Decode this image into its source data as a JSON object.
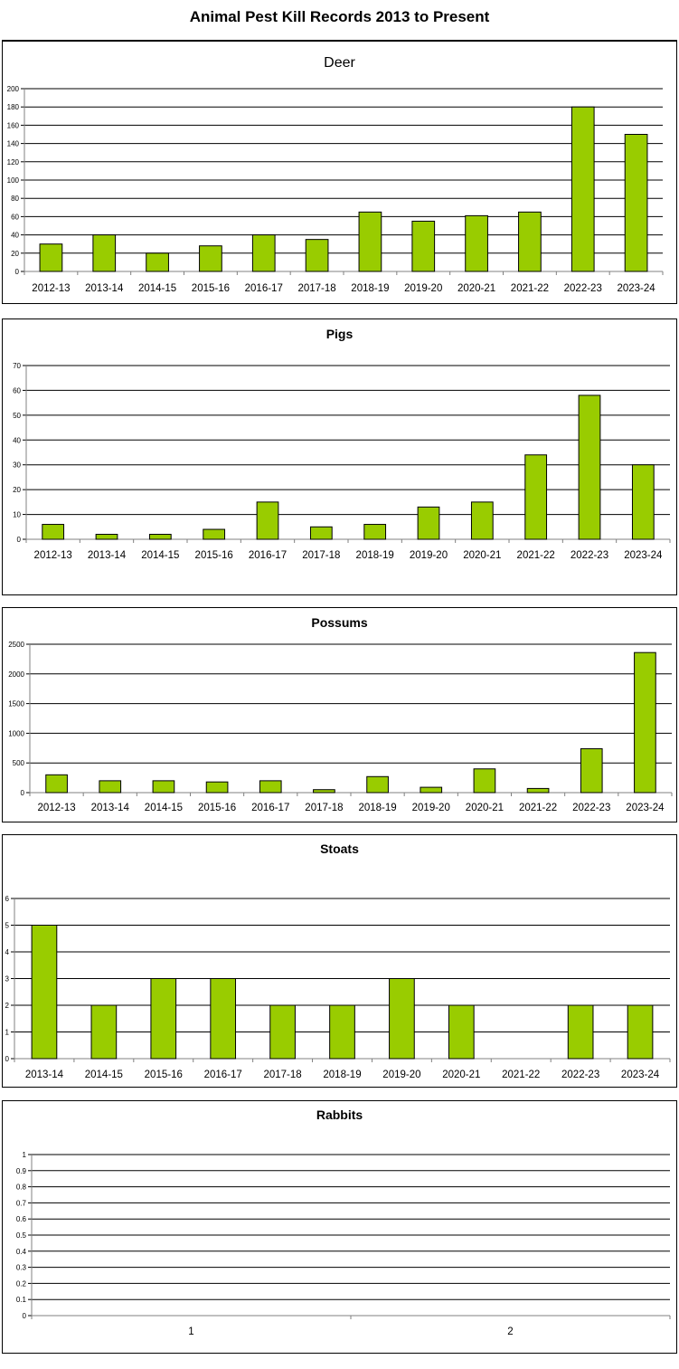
{
  "page": {
    "title": "Animal Pest Kill Records 2013 to Present"
  },
  "colors": {
    "bar_fill": "#99cc00",
    "bar_stroke": "#000000",
    "grid": "#000000"
  },
  "chart_data": [
    {
      "type": "bar",
      "title": "Deer",
      "categories": [
        "2012-13",
        "2013-14",
        "2014-15",
        "2015-16",
        "2016-17",
        "2017-18",
        "2018-19",
        "2019-20",
        "2020-21",
        "2021-22",
        "2022-23",
        "2023-24"
      ],
      "values": [
        30,
        40,
        20,
        28,
        40,
        35,
        65,
        55,
        61,
        65,
        180,
        150
      ],
      "ylim": [
        0,
        200
      ],
      "yticks": [
        0,
        20,
        40,
        60,
        80,
        100,
        120,
        140,
        160,
        180,
        200
      ],
      "grid": true
    },
    {
      "type": "bar",
      "title": "Pigs",
      "categories": [
        "2012-13",
        "2013-14",
        "2014-15",
        "2015-16",
        "2016-17",
        "2017-18",
        "2018-19",
        "2019-20",
        "2020-21",
        "2021-22",
        "2022-23",
        "2023-24"
      ],
      "values": [
        6,
        2,
        2,
        4,
        15,
        5,
        6,
        13,
        15,
        34,
        58,
        30
      ],
      "ylim": [
        0,
        70
      ],
      "yticks": [
        0,
        10,
        20,
        30,
        40,
        50,
        60,
        70
      ],
      "grid": true
    },
    {
      "type": "bar",
      "title": "Possums",
      "categories": [
        "2012-13",
        "2013-14",
        "2014-15",
        "2015-16",
        "2016-17",
        "2017-18",
        "2018-19",
        "2019-20",
        "2020-21",
        "2021-22",
        "2022-23",
        "2023-24"
      ],
      "values": [
        300,
        200,
        200,
        180,
        200,
        50,
        270,
        90,
        400,
        70,
        740,
        2360
      ],
      "ylim": [
        0,
        2500
      ],
      "yticks": [
        0,
        500,
        1000,
        1500,
        2000,
        2500
      ],
      "grid": true
    },
    {
      "type": "bar",
      "title": "Stoats",
      "categories": [
        "2013-14",
        "2014-15",
        "2015-16",
        "2016-17",
        "2017-18",
        "2018-19",
        "2019-20",
        "2020-21",
        "2021-22",
        "2022-23",
        "2023-24"
      ],
      "values": [
        5,
        2,
        3,
        3,
        2,
        2,
        3,
        2,
        0,
        2,
        2
      ],
      "ylim": [
        0,
        6
      ],
      "yticks": [
        0,
        1,
        2,
        3,
        4,
        5,
        6
      ],
      "grid": true
    },
    {
      "type": "bar",
      "title": "Rabbits",
      "categories": [
        "1",
        "2"
      ],
      "values": [
        0,
        0
      ],
      "ylim": [
        0,
        1
      ],
      "yticks": [
        0,
        0.1,
        0.2,
        0.3,
        0.4,
        0.5,
        0.6,
        0.7,
        0.8,
        0.9,
        1
      ],
      "grid": true
    }
  ]
}
